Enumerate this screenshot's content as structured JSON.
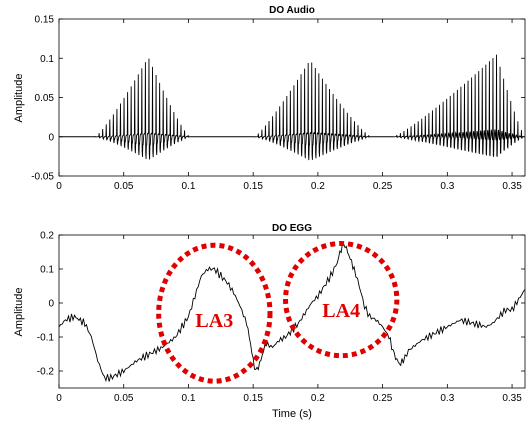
{
  "chart_data": [
    {
      "type": "line",
      "title": "DO Audio",
      "xlabel": "",
      "ylabel": "Amplitude",
      "xlim": [
        0,
        0.36
      ],
      "ylim": [
        -0.05,
        0.15
      ],
      "xticks": [
        "0",
        "0.05",
        "0.1",
        "0.15",
        "0.2",
        "0.25",
        "0.3",
        "0.35"
      ],
      "yticks": [
        "-0.05",
        "0",
        "0.05",
        "0.1",
        "0.15"
      ],
      "line_color": "#000000",
      "grid": false,
      "bursts": [
        {
          "start": 0.028,
          "end": 0.101,
          "peak_time": 0.069,
          "peak_positive": 0.115,
          "peak_negative": -0.045
        },
        {
          "start": 0.151,
          "end": 0.241,
          "peak_time": 0.194,
          "peak_positive": 0.112,
          "peak_negative": -0.045
        },
        {
          "start": 0.258,
          "end": 0.36,
          "peak_time": 0.338,
          "peak_positive": 0.128,
          "peak_negative": -0.04
        }
      ],
      "pulse_period": 0.00275
    },
    {
      "type": "line",
      "title": "DO EGG",
      "xlabel": "Time (s)",
      "ylabel": "Amplitude",
      "xlim": [
        0,
        0.36
      ],
      "ylim": [
        -0.25,
        0.2
      ],
      "xticks": [
        "0",
        "0.05",
        "0.1",
        "0.15",
        "0.2",
        "0.25",
        "0.3",
        "0.35"
      ],
      "yticks": [
        "-0.2",
        "-0.1",
        "0",
        "0.1",
        "0.2"
      ],
      "line_color": "#000000",
      "grid": false,
      "x": [
        0,
        0.005,
        0.012,
        0.02,
        0.025,
        0.03,
        0.035,
        0.04,
        0.05,
        0.06,
        0.07,
        0.08,
        0.09,
        0.1,
        0.105,
        0.11,
        0.115,
        0.12,
        0.125,
        0.13,
        0.135,
        0.14,
        0.145,
        0.148,
        0.15,
        0.152,
        0.155,
        0.158,
        0.16,
        0.165,
        0.17,
        0.175,
        0.18,
        0.185,
        0.19,
        0.195,
        0.2,
        0.205,
        0.21,
        0.215,
        0.218,
        0.22,
        0.222,
        0.225,
        0.228,
        0.232,
        0.236,
        0.24,
        0.245,
        0.25,
        0.255,
        0.258,
        0.26,
        0.263,
        0.266,
        0.27,
        0.28,
        0.29,
        0.3,
        0.31,
        0.32,
        0.33,
        0.335,
        0.34,
        0.345,
        0.35,
        0.355,
        0.36
      ],
      "y": [
        -0.07,
        -0.05,
        -0.04,
        -0.06,
        -0.1,
        -0.17,
        -0.22,
        -0.22,
        -0.2,
        -0.17,
        -0.15,
        -0.13,
        -0.1,
        -0.04,
        0.02,
        0.08,
        0.1,
        0.1,
        0.08,
        0.06,
        0.03,
        -0.01,
        -0.06,
        -0.12,
        -0.17,
        -0.2,
        -0.18,
        -0.14,
        -0.12,
        -0.13,
        -0.11,
        -0.1,
        -0.08,
        -0.06,
        -0.03,
        0.0,
        0.02,
        0.05,
        0.08,
        0.12,
        0.16,
        0.175,
        0.16,
        0.13,
        0.1,
        0.05,
        -0.01,
        -0.04,
        -0.05,
        -0.07,
        -0.1,
        -0.14,
        -0.16,
        -0.18,
        -0.17,
        -0.14,
        -0.11,
        -0.09,
        -0.07,
        -0.05,
        -0.06,
        -0.07,
        -0.06,
        -0.04,
        -0.02,
        -0.02,
        0.01,
        0.04
      ],
      "annotations": [
        {
          "text": "LA3",
          "x": 0.12,
          "y": -0.05,
          "color": "#e00000"
        },
        {
          "text": "LA4",
          "x": 0.218,
          "y": -0.02,
          "color": "#e00000"
        }
      ],
      "highlight_ellipses": [
        {
          "cx": 0.12,
          "cy": -0.03,
          "rx": 0.043,
          "ry": 0.2,
          "color": "#e00000",
          "style": "dotted"
        },
        {
          "cx": 0.218,
          "cy": 0.01,
          "rx": 0.043,
          "ry": 0.165,
          "color": "#e00000",
          "style": "dotted"
        }
      ]
    }
  ]
}
